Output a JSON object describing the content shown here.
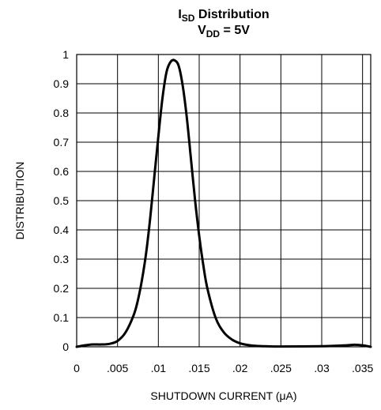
{
  "chart_data": {
    "type": "line",
    "title_line1": {
      "main": "I",
      "sub": "SD",
      "rest": " Distribution"
    },
    "title_line2": {
      "main": "V",
      "sub": "DD",
      "rest": " = 5V"
    },
    "xlabel": "SHUTDOWN CURRENT (μA)",
    "ylabel": "DISTRIBUTION",
    "xlim": [
      0,
      0.036
    ],
    "ylim": [
      0,
      1
    ],
    "grid": true,
    "x_ticks": [
      0,
      0.005,
      0.01,
      0.015,
      0.02,
      0.025,
      0.03,
      0.035
    ],
    "x_tick_labels": [
      "0",
      ".005",
      ".01",
      ".015",
      ".02",
      ".025",
      ".03",
      ".035"
    ],
    "y_ticks": [
      0,
      0.1,
      0.2,
      0.3,
      0.4,
      0.5,
      0.6,
      0.7,
      0.8,
      0.9,
      1
    ],
    "y_tick_labels": [
      "0",
      "0.1",
      "0.2",
      "0.3",
      "0.4",
      "0.5",
      "0.6",
      "0.7",
      "0.8",
      "0.9",
      "1"
    ],
    "series": [
      {
        "color": "#000000",
        "x": [
          0,
          0.001,
          0.002,
          0.003,
          0.004,
          0.005,
          0.006,
          0.007,
          0.0075,
          0.008,
          0.0085,
          0.009,
          0.0095,
          0.01,
          0.0105,
          0.011,
          0.0115,
          0.012,
          0.0125,
          0.013,
          0.0135,
          0.014,
          0.0145,
          0.015,
          0.0155,
          0.016,
          0.017,
          0.018,
          0.019,
          0.02,
          0.021,
          0.022,
          0.023,
          0.025,
          0.03,
          0.033,
          0.034,
          0.035,
          0.036
        ],
        "y": [
          0,
          0.005,
          0.008,
          0.008,
          0.01,
          0.02,
          0.05,
          0.11,
          0.16,
          0.23,
          0.32,
          0.44,
          0.58,
          0.72,
          0.85,
          0.94,
          0.975,
          0.98,
          0.96,
          0.89,
          0.78,
          0.64,
          0.5,
          0.38,
          0.28,
          0.2,
          0.1,
          0.05,
          0.025,
          0.012,
          0.006,
          0.003,
          0.002,
          0.001,
          0.002,
          0.005,
          0.007,
          0.005,
          0
        ]
      }
    ]
  }
}
